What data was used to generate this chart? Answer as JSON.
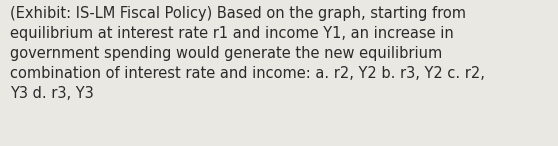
{
  "text_lines": [
    "(Exhibit: IS-LM Fiscal Policy) Based on the graph, starting from",
    "equilibrium at interest rate r1 and income Y1, an increase in",
    "government spending would generate the new equilibrium",
    "combination of interest rate and income: a. r2, Y2 b. r3, Y2 c. r2,",
    "Y3 d. r3, Y3"
  ],
  "background_color": "#eae8e3",
  "text_color": "#2b2b2b",
  "font_size": 10.5,
  "font_family": "DejaVu Sans",
  "fig_width": 5.58,
  "fig_height": 1.46,
  "dpi": 100
}
